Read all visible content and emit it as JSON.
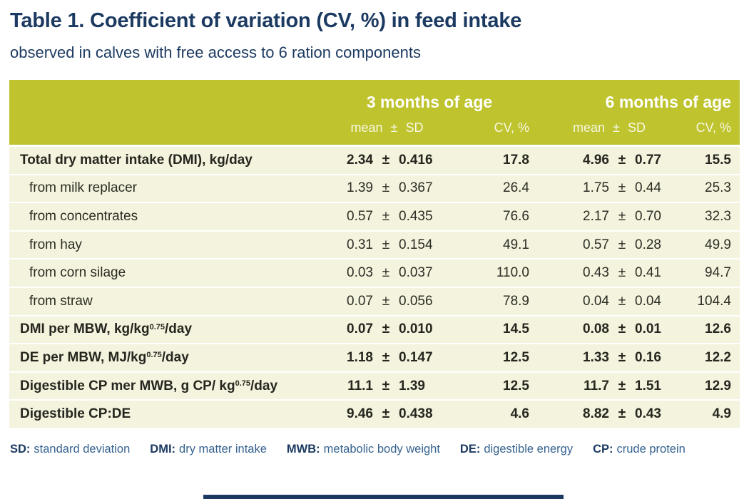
{
  "page": {
    "title": "Table 1. Coefficient of variation (CV, %) in feed intake",
    "subtitle": "observed in calves with free access to 6 ration components"
  },
  "table": {
    "group_headers": {
      "g1": "3 months of age",
      "g2": "6 months of age"
    },
    "sub_headers": {
      "mean_sd": "mean ± SD",
      "cv": "CV, %"
    },
    "plus_minus": "±",
    "rows": [
      {
        "label": "Total dry matter intake (DMI), kg/day",
        "bold": true,
        "indent": false,
        "m3": {
          "mean": "2.34",
          "sd": "0.416",
          "cv": "17.8"
        },
        "m6": {
          "mean": "4.96",
          "sd": "0.77",
          "cv": "15.5"
        }
      },
      {
        "label": "from milk replacer",
        "bold": false,
        "indent": true,
        "m3": {
          "mean": "1.39",
          "sd": "0.367",
          "cv": "26.4"
        },
        "m6": {
          "mean": "1.75",
          "sd": "0.44",
          "cv": "25.3"
        }
      },
      {
        "label": "from concentrates",
        "bold": false,
        "indent": true,
        "m3": {
          "mean": "0.57",
          "sd": "0.435",
          "cv": "76.6"
        },
        "m6": {
          "mean": "2.17",
          "sd": "0.70",
          "cv": "32.3"
        }
      },
      {
        "label": "from hay",
        "bold": false,
        "indent": true,
        "m3": {
          "mean": "0.31",
          "sd": "0.154",
          "cv": "49.1"
        },
        "m6": {
          "mean": "0.57",
          "sd": "0.28",
          "cv": "49.9"
        }
      },
      {
        "label": "from corn silage",
        "bold": false,
        "indent": true,
        "m3": {
          "mean": "0.03",
          "sd": "0.037",
          "cv": "110.0"
        },
        "m6": {
          "mean": "0.43",
          "sd": "0.41",
          "cv": "94.7"
        }
      },
      {
        "label": "from straw",
        "bold": false,
        "indent": true,
        "m3": {
          "mean": "0.07",
          "sd": "0.056",
          "cv": "78.9"
        },
        "m6": {
          "mean": "0.04",
          "sd": "0.04",
          "cv": "104.4"
        }
      },
      {
        "label_pre": "DMI per MBW, kg/kg",
        "label_sup": "0.75",
        "label_post": "/day",
        "bold": true,
        "indent": false,
        "m3": {
          "mean": "0.07",
          "sd": "0.010",
          "cv": "14.5"
        },
        "m6": {
          "mean": "0.08",
          "sd": "0.01",
          "cv": "12.6"
        }
      },
      {
        "label_pre": "DE per MBW, MJ/kg",
        "label_sup": "0.75",
        "label_post": "/day",
        "bold": true,
        "indent": false,
        "m3": {
          "mean": "1.18",
          "sd": "0.147",
          "cv": "12.5"
        },
        "m6": {
          "mean": "1.33",
          "sd": "0.16",
          "cv": "12.2"
        }
      },
      {
        "label_pre": "Digestible CP mer MWB, g CP/ kg",
        "label_sup": "0.75",
        "label_post": "/day",
        "bold": true,
        "indent": false,
        "m3": {
          "mean": "11.1",
          "sd": "1.39",
          "cv": "12.5"
        },
        "m6": {
          "mean": "11.7",
          "sd": "1.51",
          "cv": "12.9"
        }
      },
      {
        "label": "Digestible CP:DE",
        "bold": true,
        "indent": false,
        "m3": {
          "mean": "9.46",
          "sd": "0.438",
          "cv": "4.6"
        },
        "m6": {
          "mean": "8.82",
          "sd": "0.43",
          "cv": "4.9"
        }
      }
    ]
  },
  "legend": {
    "items": [
      {
        "abbr": "SD:",
        "text": "standard deviation"
      },
      {
        "abbr": "DMI:",
        "text": "dry matter intake"
      },
      {
        "abbr": "MWB:",
        "text": "metabolic body weight"
      },
      {
        "abbr": "DE:",
        "text": "digestible energy"
      },
      {
        "abbr": "CP:",
        "text": "crude protein"
      }
    ]
  },
  "colors": {
    "header_bg": "#bec32e",
    "row_bg": "#f4f3de",
    "title_navy": "#1c3a61",
    "legend_blue": "#35628f",
    "text_dark": "#2d2d25",
    "bottom_bar": "#1c3a61"
  }
}
